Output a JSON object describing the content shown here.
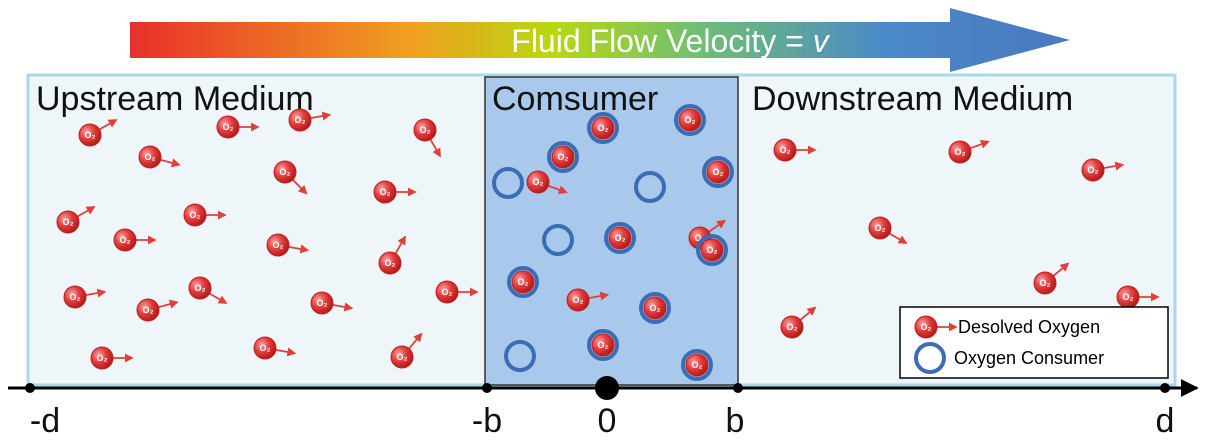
{
  "title": {
    "text": "Fluid Flow Velocity = ",
    "variable": "v"
  },
  "regions": [
    {
      "label": "Upstream Medium"
    },
    {
      "label": "Comsumer"
    },
    {
      "label": "Downstream Medium"
    }
  ],
  "molecule_label": "O₂",
  "legend": [
    {
      "label": "Desolved Oxygen"
    },
    {
      "label": "Oxygen Consumer"
    }
  ],
  "axis_labels": [
    "-d",
    "-b",
    "0",
    "b",
    "d"
  ]
}
